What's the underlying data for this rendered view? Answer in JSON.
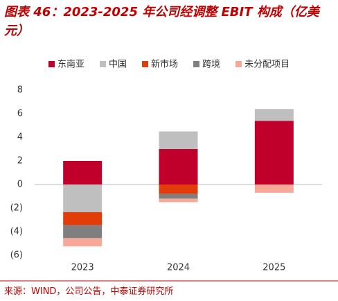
{
  "chart_data": {
    "type": "stacked_bar",
    "title": "图表 46：2023-2025 年公司经调整 EBIT 构成（亿美元）",
    "source": "来源：WIND，公司公告，中泰证券研究所",
    "categories": [
      "2023",
      "2024",
      "2025"
    ],
    "series": [
      {
        "name": "东南亚",
        "color": "#c0002b",
        "values": [
          2.0,
          3.0,
          5.4
        ]
      },
      {
        "name": "中国",
        "color": "#bfbfbf",
        "values": [
          -2.35,
          1.5,
          1.0
        ]
      },
      {
        "name": "新市场",
        "color": "#e23c0a",
        "values": [
          -1.1,
          -0.8,
          0
        ]
      },
      {
        "name": "跨境",
        "color": "#7f7f7f",
        "values": [
          -1.1,
          -0.4,
          0
        ]
      },
      {
        "name": "未分配项目",
        "color": "#f8a898",
        "values": [
          -0.7,
          -0.3,
          -0.7
        ]
      }
    ],
    "ylim": [
      -6,
      8
    ],
    "yticks": [
      {
        "value": -6,
        "label": "(6)"
      },
      {
        "value": -4,
        "label": "(4)"
      },
      {
        "value": -2,
        "label": "(2)"
      },
      0,
      2,
      4,
      6,
      8
    ],
    "grid": false,
    "legend": "top"
  }
}
